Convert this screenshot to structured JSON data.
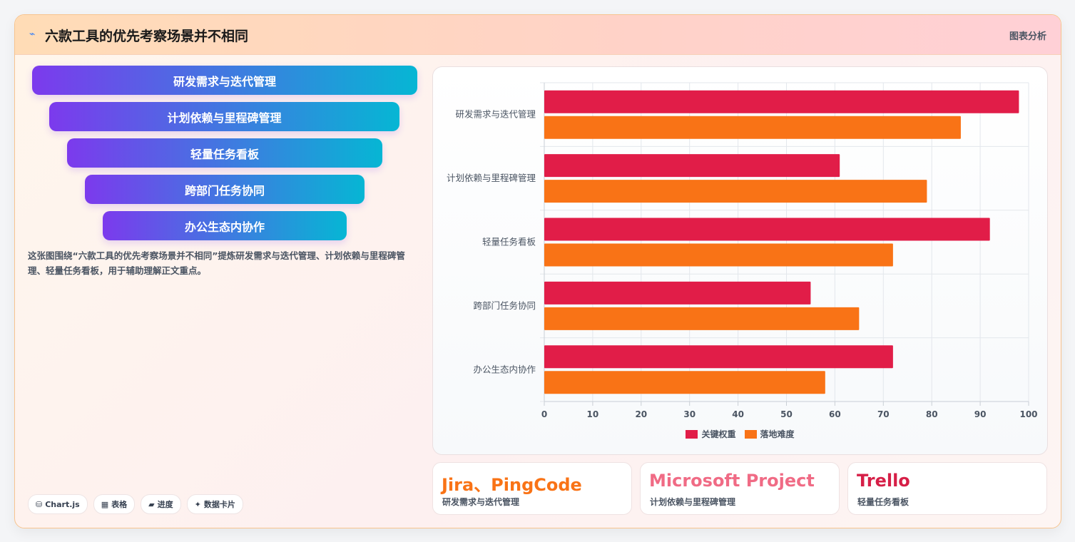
{
  "header": {
    "title_icon": "chart-icon",
    "title": "六款工具的优先考察场景并不相同",
    "tag": "图表分析"
  },
  "funnel": {
    "steps": [
      "研发需求与迭代管理",
      "计划依赖与里程碑管理",
      "轻量任务看板",
      "跨部门任务协同",
      "办公生态内协作"
    ]
  },
  "description": "这张图围绕“六款工具的优先考察场景并不相同”提炼研发需求与迭代管理、计划依赖与里程碑管理、轻量任务看板，用于辅助理解正文重点。",
  "chips": [
    {
      "icon": "database-icon",
      "glyph": "⛁",
      "label": "Chart.js"
    },
    {
      "icon": "table-icon",
      "glyph": "▦",
      "label": "表格"
    },
    {
      "icon": "progress-icon",
      "glyph": "▰",
      "label": "进度"
    },
    {
      "icon": "sparkle-icon",
      "glyph": "✦",
      "label": "数据卡片"
    }
  ],
  "chart_data": {
    "type": "bar",
    "orientation": "horizontal",
    "categories": [
      "研发需求与迭代管理",
      "计划依赖与里程碑管理",
      "轻量任务看板",
      "跨部门任务协同",
      "办公生态内协作"
    ],
    "series": [
      {
        "name": "关键权重",
        "color": "#e11d48",
        "values": [
          98,
          61,
          92,
          55,
          72
        ]
      },
      {
        "name": "落地难度",
        "color": "#f97316",
        "values": [
          86,
          79,
          72,
          65,
          58
        ]
      }
    ],
    "xlim": [
      0,
      100
    ],
    "xticks": [
      0,
      10,
      20,
      30,
      40,
      50,
      60,
      70,
      80,
      90,
      100
    ],
    "grid": true,
    "legend_position": "bottom"
  },
  "tool_cards": [
    {
      "name": "Jira、PingCode",
      "sub": "研发需求与迭代管理",
      "color": "#f97316"
    },
    {
      "name": "Microsoft Project",
      "sub": "计划依赖与里程碑管理",
      "color": "#f06b85"
    },
    {
      "name": "Trello",
      "sub": "轻量任务看板",
      "color": "#d61f47"
    }
  ]
}
